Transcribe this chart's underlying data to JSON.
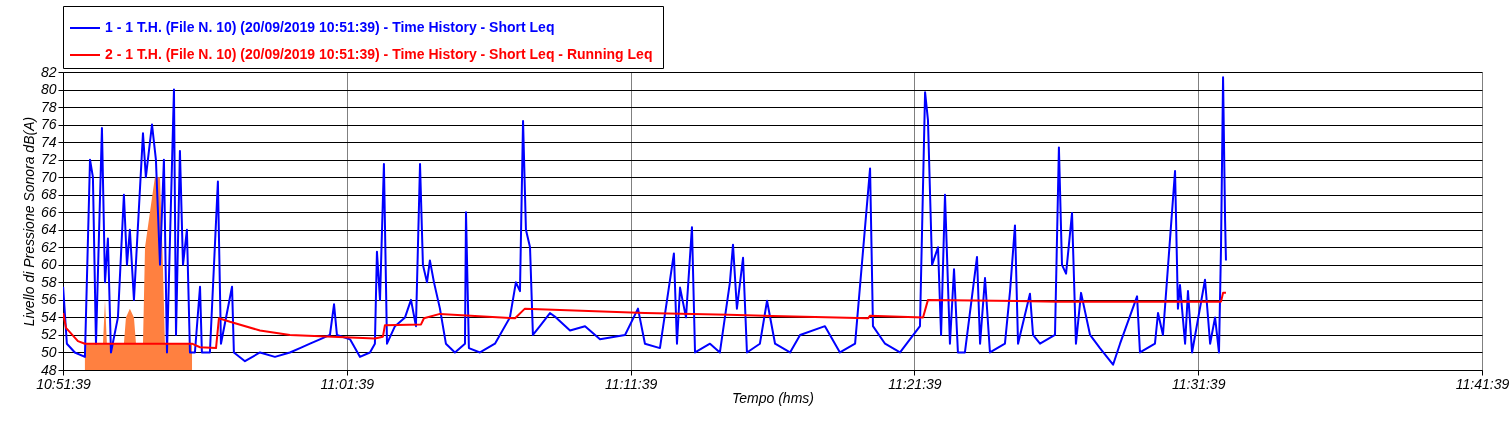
{
  "chart_data": {
    "type": "line",
    "xlabel": "Tempo (hms)",
    "ylabel": "Livello di Pressione Sonora dB(A)",
    "xlim": [
      10.860833,
      11.694167
    ],
    "xticks": [
      {
        "value": 10.860833,
        "label": "10:51:39"
      },
      {
        "value": 11.0275,
        "label": "11:01:39"
      },
      {
        "value": 11.194167,
        "label": "11:11:39"
      },
      {
        "value": 11.360833,
        "label": "11:21:39"
      },
      {
        "value": 11.5275,
        "label": "11:31:39"
      },
      {
        "value": 11.694167,
        "label": "11:41:39"
      }
    ],
    "ylim": [
      48,
      82
    ],
    "yticks": [
      48,
      50,
      52,
      54,
      56,
      58,
      60,
      62,
      64,
      66,
      68,
      70,
      72,
      74,
      76,
      78,
      80,
      82
    ],
    "grid": true,
    "legend": "top",
    "line_style": "solid",
    "series": [
      {
        "name": "1 - 1 T.H.  (File N. 10) (20/09/2019 10:51:39) - Time History - Short Leq",
        "color": "#0000ff",
        "x": [
          10.8609,
          10.8614,
          10.8631,
          10.8678,
          10.8737,
          10.8767,
          10.8784,
          10.8802,
          10.8837,
          10.8855,
          10.8872,
          10.889,
          10.8931,
          10.8966,
          10.8984,
          10.9001,
          10.9025,
          10.9078,
          10.9095,
          10.9131,
          10.9154,
          10.9178,
          10.9201,
          10.9219,
          10.926,
          10.9272,
          10.9295,
          10.9313,
          10.9336,
          10.9354,
          10.9383,
          10.9413,
          10.9424,
          10.9471,
          10.9518,
          10.9536,
          10.9601,
          10.9612,
          10.9677,
          10.9765,
          10.9853,
          10.9941,
          11.0,
          11.0059,
          11.0117,
          11.0176,
          11.02,
          11.0217,
          11.0294,
          11.0352,
          11.0411,
          11.044,
          11.0452,
          11.047,
          11.0493,
          11.0511,
          11.0558,
          11.0617,
          11.0652,
          11.0681,
          11.0705,
          11.0722,
          11.0746,
          11.0763,
          11.0787,
          11.0822,
          11.0857,
          11.091,
          11.0969,
          11.0975,
          11.0992,
          11.1057,
          11.1145,
          11.1233,
          11.1268,
          11.1292,
          11.131,
          11.1327,
          11.1351,
          11.1368,
          11.1409,
          11.1468,
          11.1503,
          11.1586,
          11.1674,
          11.1762,
          11.1909,
          11.1985,
          11.2026,
          11.2114,
          11.2196,
          11.2214,
          11.2232,
          11.2267,
          11.2302,
          11.232,
          11.2408,
          11.2466,
          11.2525,
          11.2543,
          11.2566,
          11.2602,
          11.2625,
          11.2701,
          11.2743,
          11.279,
          11.2878,
          11.2937,
          11.3083,
          11.3171,
          11.326,
          11.3348,
          11.3365,
          11.3436,
          11.3524,
          11.3641,
          11.3671,
          11.3688,
          11.3712,
          11.3747,
          11.3765,
          11.3788,
          11.3817,
          11.3841,
          11.3864,
          11.3905,
          11.3976,
          11.3994,
          11.4023,
          11.4052,
          11.414,
          11.417,
          11.4199,
          11.4217,
          11.4287,
          11.4305,
          11.4346,
          11.4434,
          11.4457,
          11.4475,
          11.4499,
          11.4534,
          11.4557,
          11.4587,
          11.464,
          11.4698,
          11.4775,
          11.4816,
          11.4916,
          11.4933,
          11.5021,
          11.5039,
          11.5068,
          11.5139,
          11.5156,
          11.5168,
          11.5198,
          11.5215,
          11.5239,
          11.5315,
          11.5345,
          11.5374,
          11.5397,
          11.5409,
          11.5421,
          11.5433,
          11.5438
        ],
        "values": [
          57.5,
          56,
          51,
          50,
          49.5,
          72,
          70,
          51,
          75.6,
          58,
          63,
          50,
          54,
          68,
          60,
          64,
          56,
          75,
          70,
          76,
          72,
          60,
          72,
          50,
          80,
          52,
          73,
          60,
          64,
          50,
          50,
          57.5,
          50,
          50,
          69.5,
          51,
          57.5,
          50,
          49,
          50,
          49.5,
          50,
          50.5,
          51,
          51.5,
          52,
          55.5,
          52,
          51.5,
          49.5,
          50,
          51,
          61.5,
          56,
          71.5,
          51,
          53,
          54,
          56,
          53,
          71.5,
          60,
          58,
          60.5,
          58,
          55,
          51,
          50,
          51,
          66,
          50.5,
          50,
          51,
          54,
          58,
          57,
          76.4,
          64,
          62,
          52,
          53,
          54.5,
          54,
          52.5,
          53,
          51.5,
          52,
          55,
          51,
          50.5,
          61.3,
          51,
          57.4,
          54,
          64.3,
          50,
          51,
          50,
          58,
          62.3,
          55,
          60.8,
          50,
          51,
          55.9,
          51,
          50,
          52,
          53,
          50,
          51,
          71,
          53,
          51,
          50,
          53,
          79.7,
          76.5,
          60,
          62,
          52,
          68,
          51,
          59.5,
          50,
          50,
          60.9,
          51,
          58.5,
          50,
          51,
          57,
          64.5,
          51,
          56.7,
          52,
          51,
          52,
          73.4,
          60,
          59,
          65.9,
          51,
          56.8,
          52,
          50.5,
          48.6,
          51,
          56.4,
          50,
          51,
          54.5,
          52,
          70.7,
          55,
          57.7,
          51,
          57,
          50,
          58.3,
          51,
          54,
          50,
          62,
          81.4,
          65,
          60.5
        ]
      },
      {
        "name": "2 - 1 T.H.  (File N. 10) (20/09/2019 10:51:39) - Time History - Short Leq - Running Leq",
        "color": "#ff0000",
        "x": [
          10.8609,
          10.8626,
          10.8696,
          10.8737,
          10.9366,
          10.9413,
          10.9507,
          10.9524,
          10.9589,
          10.9765,
          10.9941,
          11.044,
          11.0487,
          11.0499,
          11.0711,
          11.0728,
          11.0822,
          11.1263,
          11.1321,
          11.2026,
          11.2514,
          11.3336,
          11.3348,
          11.3659,
          11.3688,
          11.4452,
          11.5409,
          11.5421,
          11.5438
        ],
        "values": [
          54.5,
          52.8,
          51.3,
          51,
          51,
          50.6,
          50.5,
          53.9,
          53.5,
          52.5,
          52,
          51.6,
          51.8,
          53.1,
          53.2,
          53.9,
          54.4,
          53.9,
          55,
          54.5,
          54.3,
          53.9,
          54.2,
          54,
          56,
          55.8,
          55.8,
          56.8,
          56.8
        ]
      },
      {
        "type": "area",
        "color": "#ff8040",
        "x": [
          10.8737,
          10.8843,
          10.8855,
          10.8866,
          10.8966,
          10.8978,
          10.9001,
          10.9025,
          10.9037,
          10.9078,
          10.909,
          10.9119,
          10.9148,
          10.9178,
          10.9195,
          10.9207,
          10.9366
        ],
        "values": [
          51,
          51,
          56,
          51,
          51,
          54,
          55,
          54,
          51,
          51,
          62,
          66,
          70,
          70,
          60,
          51,
          51
        ]
      }
    ]
  }
}
